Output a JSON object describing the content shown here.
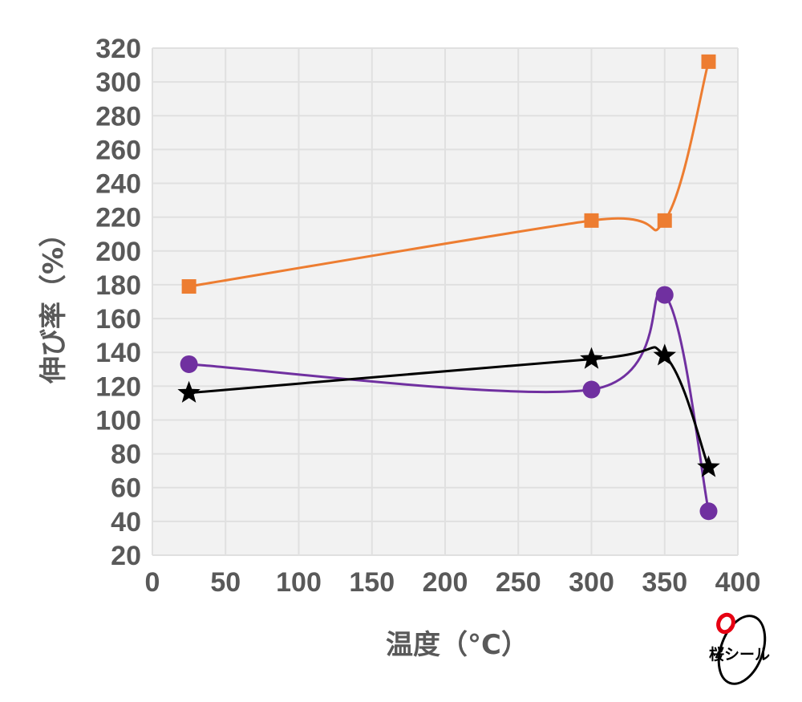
{
  "chart_data": {
    "type": "line",
    "title": "",
    "xlabel": "温度（°C）",
    "ylabel": "伸び率（%）",
    "xlim": [
      0,
      400
    ],
    "ylim": [
      20,
      320
    ],
    "xticks": [
      0,
      50,
      100,
      150,
      200,
      250,
      300,
      350,
      400
    ],
    "yticks": [
      20,
      40,
      60,
      80,
      100,
      120,
      140,
      160,
      180,
      200,
      220,
      240,
      260,
      280,
      300,
      320
    ],
    "grid": true,
    "smooth": true,
    "series": [
      {
        "color": "#ED7D31",
        "marker": "square",
        "x": [
          25,
          300,
          350,
          380
        ],
        "y": [
          179,
          218,
          218,
          312
        ]
      },
      {
        "color": "#7030A0",
        "marker": "circle",
        "x": [
          25,
          300,
          350,
          380
        ],
        "y": [
          133,
          118,
          174,
          46
        ]
      },
      {
        "color": "#000000",
        "marker": "star",
        "x": [
          25,
          300,
          350,
          380
        ],
        "y": [
          116,
          136,
          138,
          72
        ]
      }
    ]
  },
  "logo": {
    "text": "桜シール"
  }
}
